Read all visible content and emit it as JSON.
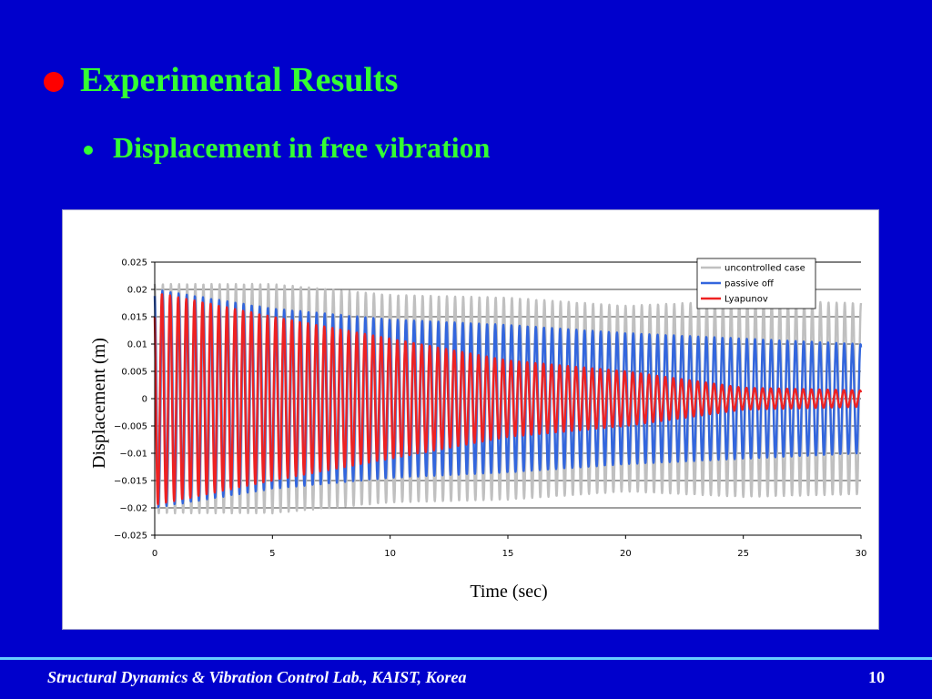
{
  "slide": {
    "title": "Experimental Results",
    "subtitle": "Displacement in free vibration",
    "footer": "Structural Dynamics & Vibration Control Lab., KAIST, Korea",
    "page_number": "10",
    "colors": {
      "background": "#0000cc",
      "title": "#33ff33",
      "bullet": "#ff0000",
      "footer_line": "#66ccff"
    }
  },
  "chart_data": {
    "type": "line",
    "xlabel": "Time (sec)",
    "ylabel": "Displacement (m)",
    "xlim": [
      0,
      30
    ],
    "ylim": [
      -0.025,
      0.025
    ],
    "xticks": [
      "0",
      "5",
      "10",
      "15",
      "20",
      "25",
      "30"
    ],
    "yticks": [
      "0.025",
      "0.02",
      "0.015",
      "0.01",
      "0.005",
      "0",
      "−0.005",
      "−0.01",
      "−0.015",
      "−0.02",
      "−0.025"
    ],
    "grid": "horizontal",
    "legend_position": "top-right",
    "frequency_hz": 2.9,
    "series": [
      {
        "name": "uncontrolled case",
        "color": "#c0c0c0",
        "envelope_t": [
          0,
          5,
          10,
          15,
          20,
          25,
          30
        ],
        "envelope_amp": [
          0.021,
          0.021,
          0.019,
          0.0185,
          0.017,
          0.018,
          0.0175
        ]
      },
      {
        "name": "passive off",
        "color": "#3366dd",
        "envelope_t": [
          0,
          5,
          10,
          15,
          20,
          25,
          30
        ],
        "envelope_amp": [
          0.02,
          0.0165,
          0.0145,
          0.0135,
          0.012,
          0.011,
          0.01
        ]
      },
      {
        "name": "Lyapunov",
        "color": "#ee2222",
        "envelope_t": [
          0,
          5,
          10,
          15,
          20,
          25,
          30
        ],
        "envelope_amp": [
          0.0195,
          0.015,
          0.011,
          0.007,
          0.005,
          0.002,
          0.0015
        ]
      }
    ]
  }
}
